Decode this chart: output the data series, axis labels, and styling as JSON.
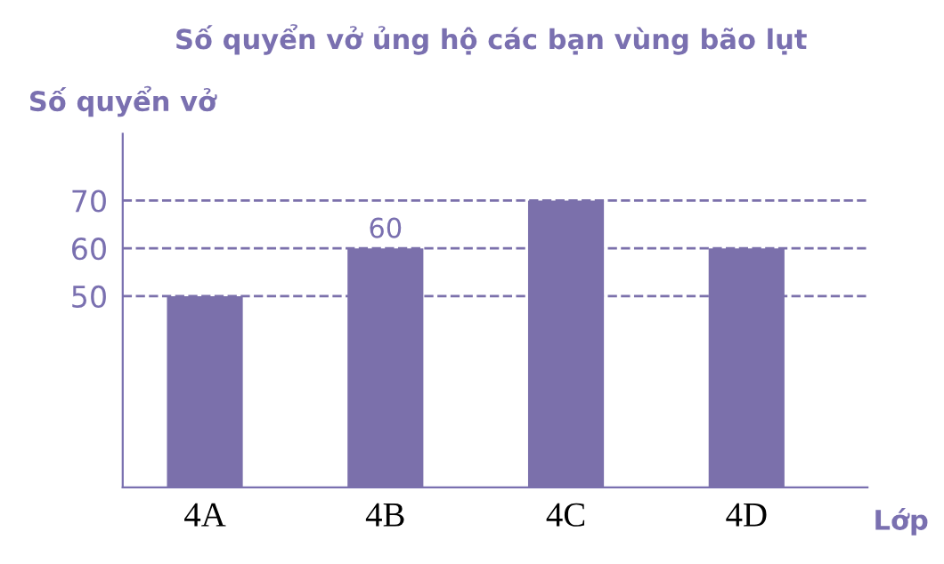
{
  "chart_data": {
    "type": "bar",
    "title": "Số quyển vở ủng hộ các bạn vùng bão lụt",
    "ylabel": "Số quyển vở",
    "xlabel": "Lớp",
    "categories": [
      "4A",
      "4B",
      "4C",
      "4D"
    ],
    "values": [
      50,
      60,
      70,
      60
    ],
    "color": "#7b70ab",
    "value_labels": [
      null,
      "60",
      null,
      null
    ],
    "ylim": [
      10,
      84
    ],
    "yticks": [
      50,
      60,
      70
    ],
    "grid": false,
    "legend": false,
    "ref_lines": [
      {
        "axis": "y",
        "value": 50,
        "color": "#7b70ab",
        "line_style": "dashed"
      },
      {
        "axis": "y",
        "value": 60,
        "color": "#7b70ab",
        "line_style": "dashed"
      },
      {
        "axis": "y",
        "value": 70,
        "color": "#7b70ab",
        "line_style": "dashed"
      }
    ]
  }
}
